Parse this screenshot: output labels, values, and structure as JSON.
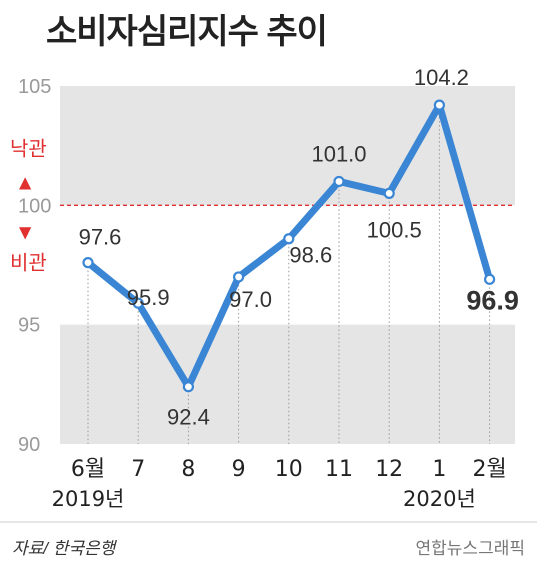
{
  "title": "소비자심리지수 추이",
  "chart_data": {
    "type": "line",
    "x": [
      "6월",
      "7",
      "8",
      "9",
      "10",
      "11",
      "12",
      "1",
      "2월"
    ],
    "year_labels": [
      {
        "text": "2019년",
        "at": "6월"
      },
      {
        "text": "2020년",
        "at": "1"
      }
    ],
    "series": [
      {
        "values": [
          97.6,
          95.9,
          92.4,
          97.0,
          98.6,
          101.0,
          100.5,
          104.2,
          96.9
        ],
        "color": "#3a86d4"
      }
    ],
    "data_labels": [
      "97.6",
      "95.9",
      "92.4",
      "97.0",
      "98.6",
      "101.0",
      "100.5",
      "104.2",
      "96.9"
    ],
    "ylim": [
      90,
      105
    ],
    "yticks": [
      "90",
      "95",
      "100",
      "105"
    ],
    "reference_line": {
      "value": 100,
      "color": "#e03030",
      "label_above": "낙관",
      "label_below": "비관",
      "arrow_up": "▲",
      "arrow_down": "▼"
    },
    "shaded_bands": [
      {
        "from": 90,
        "to": 95,
        "color": "#e5e5e5"
      },
      {
        "from": 100,
        "to": 105,
        "color": "#e5e5e5"
      }
    ],
    "grid": "vertical dotted"
  },
  "footer": {
    "source": "자료/ 한국은행",
    "credit": "연합뉴스그래픽"
  }
}
